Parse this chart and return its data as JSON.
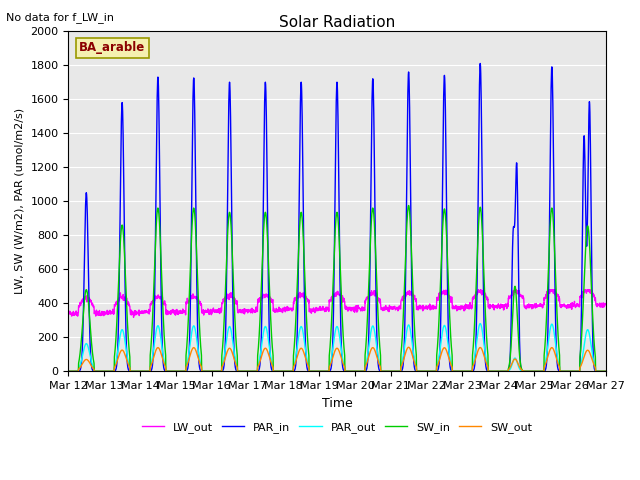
{
  "title": "Solar Radiation",
  "note": "No data for f_LW_in",
  "xlabel": "Time",
  "ylabel": "LW, SW (W/m2), PAR (umol/m2/s)",
  "legend_label": "BA_arable",
  "ylim": [
    0,
    2000
  ],
  "xlim_days": [
    12,
    27
  ],
  "n_days": 15,
  "start_day": 12,
  "series": {
    "LW_out": {
      "color": "#ff00ff",
      "lw": 1.0
    },
    "PAR_in": {
      "color": "#0000ff",
      "lw": 1.0
    },
    "PAR_out": {
      "color": "#00ffff",
      "lw": 1.0
    },
    "SW_in": {
      "color": "#00cc00",
      "lw": 1.0
    },
    "SW_out": {
      "color": "#ff8800",
      "lw": 1.0
    }
  },
  "bg_color": "#e8e8e8",
  "grid_color": "white",
  "PAR_in_peaks": [
    1050,
    1580,
    1730,
    1725,
    1700,
    1700,
    1700,
    1700,
    1720,
    1760,
    1740,
    1810,
    1190,
    1790,
    1580
  ],
  "SW_in_peaks": [
    480,
    860,
    960,
    960,
    935,
    935,
    935,
    935,
    960,
    975,
    955,
    965,
    500,
    960,
    855
  ]
}
